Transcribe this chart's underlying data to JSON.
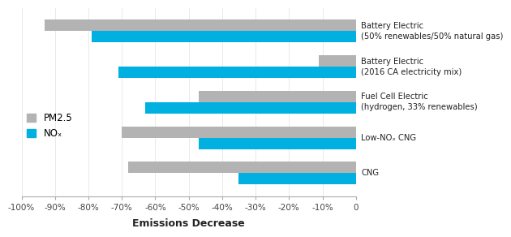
{
  "categories": [
    "Battery Electric\n(50% renewables/50% natural gas)",
    "Battery Electric\n(2016 CA electricity mix)",
    "Fuel Cell Electric\n(hydrogen, 33% renewables)",
    "Low-NOₓ CNG",
    "CNG"
  ],
  "pm25_values": [
    -93,
    -11,
    -47,
    -70,
    -68
  ],
  "nox_values": [
    -79,
    -71,
    -63,
    -47,
    -35
  ],
  "pm25_color": "#b3b3b3",
  "nox_color": "#00b0e0",
  "xlabel": "Emissions Decrease",
  "xlim": [
    -100,
    0
  ],
  "xtick_labels": [
    "-100%",
    "-90%",
    "-80%",
    "-70%",
    "-60%",
    "-50%",
    "-40%",
    "-30%",
    "-20%",
    "-10%",
    "0"
  ],
  "xtick_values": [
    -100,
    -90,
    -80,
    -70,
    -60,
    -50,
    -40,
    -30,
    -20,
    -10,
    0
  ],
  "legend_pm25": "PM2.5",
  "legend_nox": "NOₓ",
  "bar_height": 0.32,
  "background_color": "#ffffff"
}
